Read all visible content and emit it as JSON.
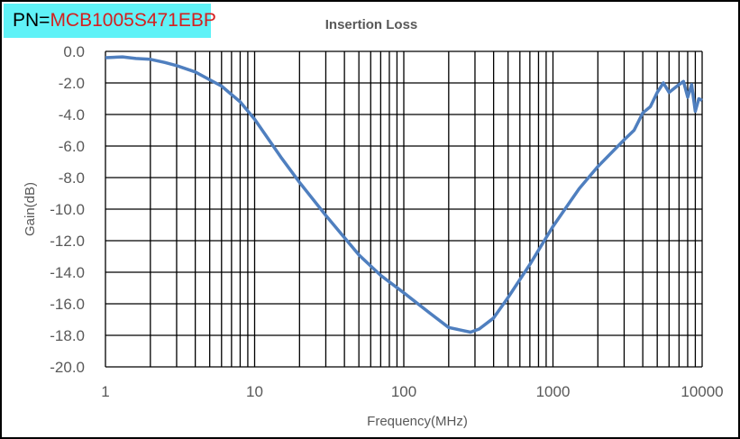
{
  "part_label": {
    "prefix": "PN=",
    "value": "MCB1005S471EBP"
  },
  "chart_data": {
    "type": "line",
    "title": "Insertion Loss",
    "xlabel": "Frequency(MHz)",
    "ylabel": "Gain(dB)",
    "xscale": "log",
    "xlim": [
      1,
      10000
    ],
    "ylim": [
      -20,
      0
    ],
    "grid": true,
    "xticks": [
      "1",
      "10",
      "100",
      "1000",
      "10000"
    ],
    "yticks": [
      "0.0",
      "-2.0",
      "-4.0",
      "-6.0",
      "-8.0",
      "-10.0",
      "-12.0",
      "-14.0",
      "-16.0",
      "-18.0",
      "-20.0"
    ],
    "series": [
      {
        "name": "Insertion Loss",
        "color": "#4f7fbf",
        "x": [
          1,
          1.3,
          1.6,
          2,
          2.5,
          3,
          4,
          5,
          6,
          8,
          10,
          15,
          20,
          30,
          50,
          70,
          100,
          150,
          200,
          280,
          320,
          400,
          500,
          700,
          1000,
          1500,
          2000,
          3000,
          3500,
          4000,
          4500,
          5000,
          5500,
          6000,
          7000,
          7500,
          8000,
          8500,
          9000,
          9500,
          10000
        ],
        "y": [
          -0.4,
          -0.35,
          -0.45,
          -0.5,
          -0.7,
          -0.9,
          -1.3,
          -1.8,
          -2.2,
          -3.2,
          -4.3,
          -6.7,
          -8.3,
          -10.4,
          -12.9,
          -14.2,
          -15.3,
          -16.6,
          -17.5,
          -17.8,
          -17.6,
          -16.9,
          -15.6,
          -13.5,
          -11.1,
          -8.7,
          -7.3,
          -5.6,
          -5.0,
          -3.9,
          -3.5,
          -2.6,
          -2.0,
          -2.6,
          -2.1,
          -1.9,
          -2.9,
          -2.1,
          -3.8,
          -3.0,
          -3.1
        ]
      }
    ]
  }
}
